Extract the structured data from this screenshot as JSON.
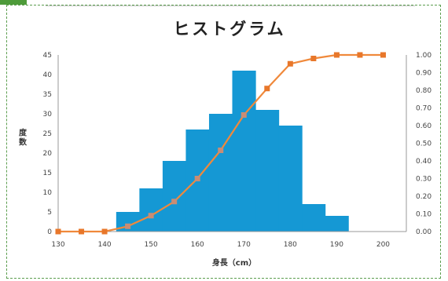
{
  "chart_data": {
    "type": "bar",
    "title": "ヒストグラム",
    "xlabel": "身長（cm）",
    "ylabel": "度数",
    "xlim": [
      130,
      205
    ],
    "ylim": [
      0,
      45
    ],
    "y2lim": [
      0,
      1.0
    ],
    "x_ticks": [
      "130",
      "140",
      "150",
      "160",
      "170",
      "180",
      "190",
      "200"
    ],
    "y_ticks": [
      "0",
      "5",
      "10",
      "15",
      "20",
      "25",
      "30",
      "35",
      "40",
      "45"
    ],
    "y2_ticks": [
      "0.00",
      "0.10",
      "0.20",
      "0.30",
      "0.40",
      "0.50",
      "0.60",
      "0.70",
      "0.80",
      "0.90",
      "1.00"
    ],
    "histogram": {
      "bins": [
        [
          142.5,
          147.5
        ],
        [
          147.5,
          152.5
        ],
        [
          152.5,
          157.5
        ],
        [
          157.5,
          162.5
        ],
        [
          162.5,
          167.5
        ],
        [
          167.5,
          172.5
        ],
        [
          172.5,
          177.5
        ],
        [
          177.5,
          182.5
        ],
        [
          182.5,
          187.5
        ],
        [
          187.5,
          192.5
        ]
      ],
      "values": [
        5,
        11,
        18,
        26,
        30,
        41,
        31,
        27,
        7,
        4
      ],
      "color": "#1598d4"
    },
    "cumulative": {
      "axis": "secondary",
      "x": [
        130,
        135,
        140,
        145,
        150,
        155,
        160,
        165,
        170,
        175,
        180,
        185,
        190,
        195,
        200
      ],
      "values": [
        0.0,
        0.0,
        0.0,
        0.03,
        0.09,
        0.17,
        0.3,
        0.46,
        0.66,
        0.81,
        0.95,
        0.98,
        1.0,
        1.0,
        1.0
      ],
      "line_color": "#f0893b",
      "marker_color": "#e8772a",
      "overlap_color": "#c98c74"
    },
    "grid": false,
    "legend": "none"
  }
}
